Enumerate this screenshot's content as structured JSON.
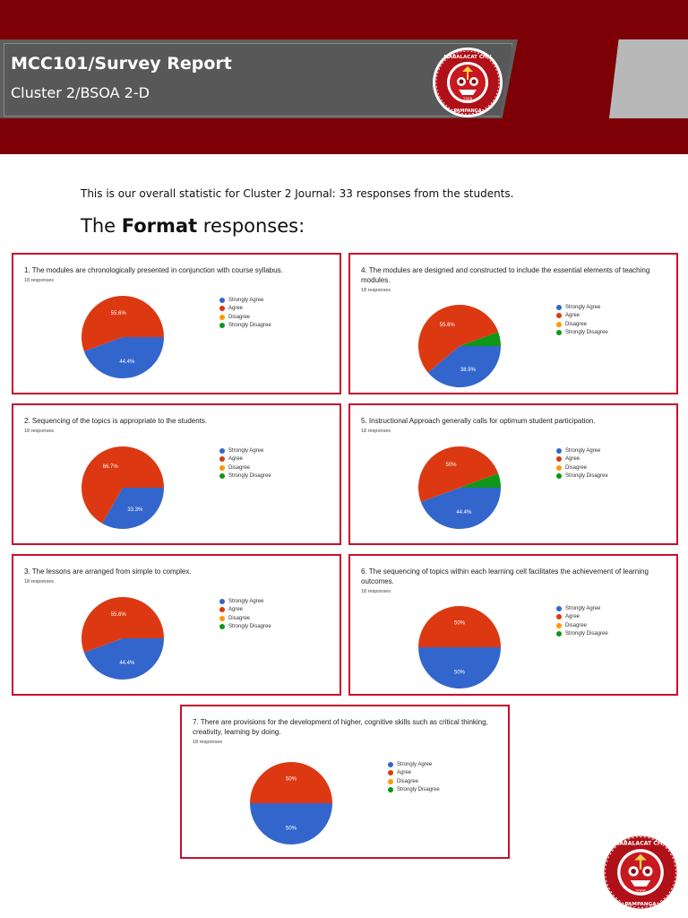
{
  "header": {
    "title": "MCC101/Survey Report",
    "subtitle": "Cluster  2/BSOA 2-D",
    "logo": {
      "top_text": "MABALACAT CITY COLLEGE",
      "year": "2008",
      "bottom_text": "PAMPANGA"
    }
  },
  "intro_text": "This is our overall statistic for Cluster 2 Journal: 33 responses from the students.",
  "section_title": {
    "prefix": "The ",
    "bold": "Format",
    "suffix": " responses:"
  },
  "legend_labels": [
    "Strongly Agree",
    "Agree",
    "Disagree",
    "Strongly Disagree"
  ],
  "colors": {
    "strongly_agree": "#3366cc",
    "agree": "#dc3912",
    "disagree": "#ff9900",
    "strongly_disagree": "#109618",
    "frame": "#c8102e",
    "banner": "#7d0006"
  },
  "chart_data": [
    {
      "type": "pie",
      "title": "1. The modules are chronologically presented in conjunction with course syllabus.",
      "responses": "18 responses",
      "slices": [
        {
          "label": "Strongly Agree",
          "value": 44.4,
          "text": "44.4%"
        },
        {
          "label": "Agree",
          "value": 55.6,
          "text": "55.6%"
        },
        {
          "label": "Disagree",
          "value": 0,
          "text": ""
        },
        {
          "label": "Strongly Disagree",
          "value": 0,
          "text": ""
        }
      ]
    },
    {
      "type": "pie",
      "title": "4. The modules are designed and constructed to include the essential elements of teaching modules.",
      "responses": "18 responses",
      "slices": [
        {
          "label": "Strongly Agree",
          "value": 38.9,
          "text": "38.9%"
        },
        {
          "label": "Agree",
          "value": 55.6,
          "text": "55.6%"
        },
        {
          "label": "Disagree",
          "value": 0,
          "text": ""
        },
        {
          "label": "Strongly Disagree",
          "value": 5.5,
          "text": ""
        }
      ]
    },
    {
      "type": "pie",
      "title": "2. Sequencing of the topics is appropriate to the students.",
      "responses": "18 responses",
      "slices": [
        {
          "label": "Strongly Agree",
          "value": 33.3,
          "text": "33.3%"
        },
        {
          "label": "Agree",
          "value": 66.7,
          "text": "66.7%"
        },
        {
          "label": "Disagree",
          "value": 0,
          "text": ""
        },
        {
          "label": "Strongly Disagree",
          "value": 0,
          "text": ""
        }
      ]
    },
    {
      "type": "pie",
      "title": "5. Instructional Approach generally calls for optimum student participation.",
      "responses": "18 responses",
      "slices": [
        {
          "label": "Strongly Agree",
          "value": 44.4,
          "text": "44.4%"
        },
        {
          "label": "Agree",
          "value": 50,
          "text": "50%"
        },
        {
          "label": "Disagree",
          "value": 0,
          "text": ""
        },
        {
          "label": "Strongly Disagree",
          "value": 5.6,
          "text": ""
        }
      ]
    },
    {
      "type": "pie",
      "title": "3. The lessons are arranged from simple to complex.",
      "responses": "18 responses",
      "slices": [
        {
          "label": "Strongly Agree",
          "value": 44.4,
          "text": "44.4%"
        },
        {
          "label": "Agree",
          "value": 55.6,
          "text": "55.6%"
        },
        {
          "label": "Disagree",
          "value": 0,
          "text": ""
        },
        {
          "label": "Strongly Disagree",
          "value": 0,
          "text": ""
        }
      ]
    },
    {
      "type": "pie",
      "title": "6. The sequencing of topics within each learning cell facilitates the achievement of learning outcomes.",
      "responses": "18 responses",
      "slices": [
        {
          "label": "Strongly Agree",
          "value": 50,
          "text": "50%"
        },
        {
          "label": "Agree",
          "value": 50,
          "text": "50%"
        },
        {
          "label": "Disagree",
          "value": 0,
          "text": ""
        },
        {
          "label": "Strongly Disagree",
          "value": 0,
          "text": ""
        }
      ]
    },
    {
      "type": "pie",
      "title": "7. There are provisions for the development of higher, cognitive skills such as critical thinking, creativity, learning by doing.",
      "responses": "18 responses",
      "slices": [
        {
          "label": "Strongly Agree",
          "value": 50,
          "text": "50%"
        },
        {
          "label": "Agree",
          "value": 50,
          "text": "50%"
        },
        {
          "label": "Disagree",
          "value": 0,
          "text": ""
        },
        {
          "label": "Strongly Disagree",
          "value": 0,
          "text": ""
        }
      ]
    }
  ]
}
